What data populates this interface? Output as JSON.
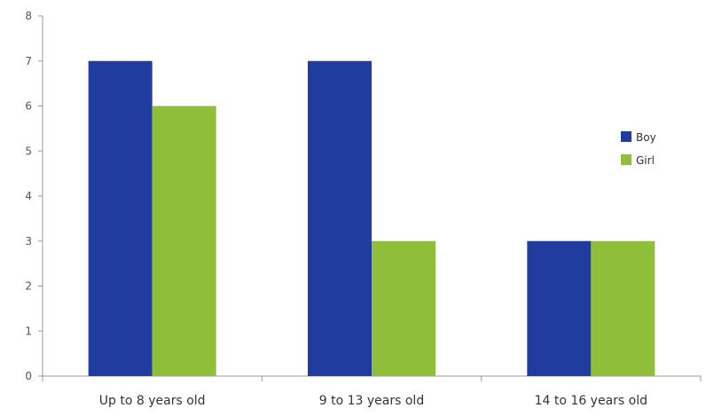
{
  "chart_data": {
    "type": "bar",
    "categories": [
      "Up to 8 years old",
      "9 to 13 years old",
      "14 to 16 years old"
    ],
    "series": [
      {
        "name": "Boy",
        "values": [
          7,
          7,
          3
        ],
        "color": "#1f3c9e"
      },
      {
        "name": "Girl",
        "values": [
          6,
          3,
          3
        ],
        "color": "#8fbf3a"
      }
    ],
    "ylim": [
      0,
      8
    ],
    "yticks": [
      0,
      1,
      2,
      3,
      4,
      5,
      6,
      7,
      8
    ],
    "grid": false,
    "legend_position": "right"
  }
}
